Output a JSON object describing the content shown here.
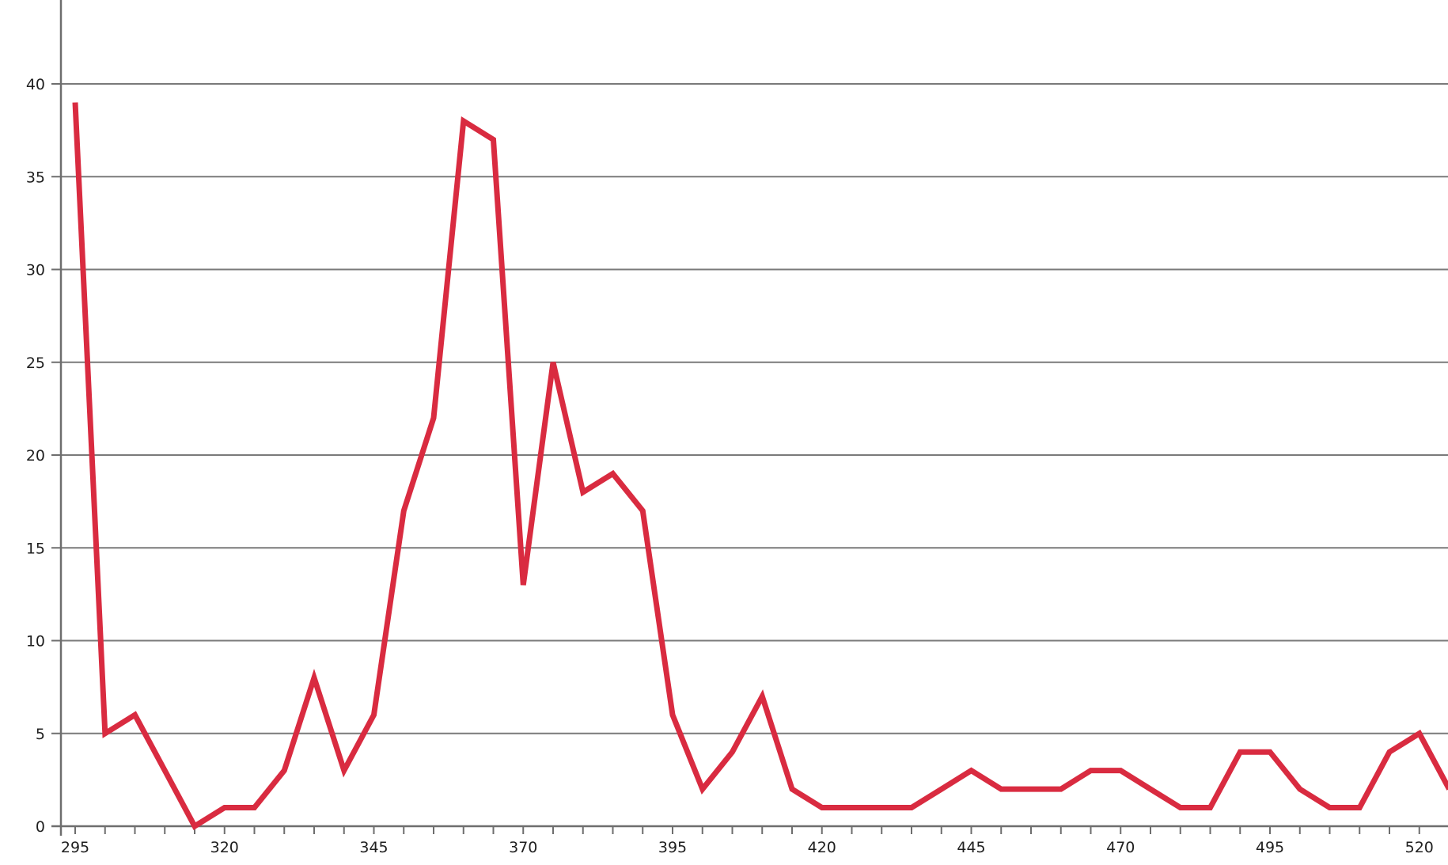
{
  "chart_data": {
    "type": "line",
    "title": "",
    "xlabel": "",
    "ylabel": "",
    "xlim": [
      293,
      521
    ],
    "ylim": [
      0,
      44
    ],
    "x_ticks": [
      295,
      320,
      345,
      370,
      395,
      420,
      445,
      470,
      495,
      520
    ],
    "y_ticks": [
      0,
      5,
      10,
      15,
      20,
      25,
      30,
      35,
      40
    ],
    "x_minor_step": 5,
    "grid": "horizontal",
    "legend": "none",
    "series": [
      {
        "color": "#d92b40",
        "x": [
          295,
          300,
          305,
          310,
          315,
          320,
          325,
          330,
          335,
          340,
          345,
          350,
          355,
          360,
          365,
          370,
          375,
          380,
          385,
          390,
          395,
          400,
          405,
          410,
          415,
          420,
          425,
          430,
          435,
          440,
          445,
          450,
          455,
          460,
          465,
          470,
          475,
          480,
          485,
          490,
          495,
          500,
          505,
          510,
          515,
          520,
          525
        ],
        "values": [
          39,
          5,
          6,
          3,
          0,
          1,
          1,
          3,
          8,
          3,
          6,
          17,
          22,
          38,
          37,
          13,
          25,
          18,
          19,
          17,
          6,
          2,
          4,
          7,
          2,
          1,
          1,
          1,
          1,
          2,
          3,
          2,
          2,
          2,
          3,
          3,
          2,
          1,
          1,
          4,
          4,
          2,
          1,
          1,
          4,
          5,
          2
        ]
      }
    ]
  }
}
